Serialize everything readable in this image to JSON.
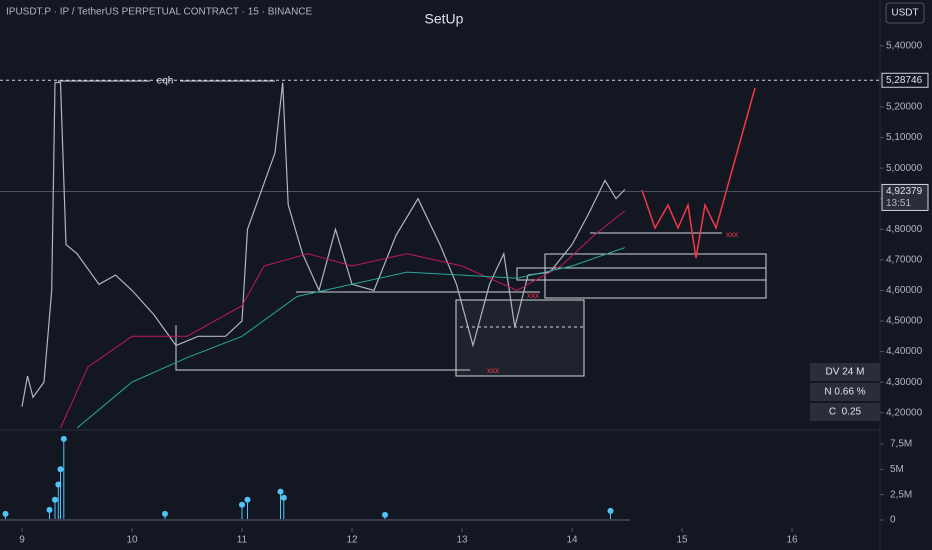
{
  "chart_data": {
    "type": "line",
    "header": "IPUSDT.P · IP / TetherUS PERPETUAL CONTRACT · 15 · BINANCE",
    "title": "SetUp",
    "currency": "USDT",
    "xlim": [
      8.8,
      16.8
    ],
    "xticks": [
      9,
      10,
      11,
      12,
      13,
      14,
      15,
      16
    ],
    "ylim": [
      4.15,
      5.55
    ],
    "yticks": [
      {
        "value": 4.2,
        "label": "4,20000"
      },
      {
        "value": 4.3,
        "label": "4,30000"
      },
      {
        "value": 4.4,
        "label": "4,40000"
      },
      {
        "value": 4.5,
        "label": "4,50000"
      },
      {
        "value": 4.6,
        "label": "4,60000"
      },
      {
        "value": 4.7,
        "label": "4,70000"
      },
      {
        "value": 4.8,
        "label": "4,80000"
      },
      {
        "value": 4.9,
        "label": "4,90000"
      },
      {
        "value": 5.0,
        "label": "5,00000"
      },
      {
        "value": 5.1,
        "label": "5,10000"
      },
      {
        "value": 5.2,
        "label": "5,20000"
      },
      {
        "value": 5.4,
        "label": "5,40000"
      }
    ],
    "series": [
      {
        "name": "Price",
        "color": "#b2b5be",
        "x": [
          9.0,
          9.05,
          9.1,
          9.2,
          9.27,
          9.3,
          9.35,
          9.4,
          9.5,
          9.7,
          9.85,
          10.0,
          10.2,
          10.4,
          10.6,
          10.85,
          11.0,
          11.05,
          11.2,
          11.3,
          11.37,
          11.42,
          11.55,
          11.7,
          11.85,
          12.0,
          12.2,
          12.4,
          12.6,
          12.8,
          12.95,
          13.1,
          13.25,
          13.38,
          13.48,
          13.6,
          13.8,
          14.0,
          14.15,
          14.3,
          14.4,
          14.48
        ],
        "values": [
          4.22,
          4.32,
          4.25,
          4.3,
          4.6,
          5.28,
          5.28,
          4.75,
          4.72,
          4.62,
          4.65,
          4.6,
          4.52,
          4.42,
          4.45,
          4.45,
          4.5,
          4.8,
          4.95,
          5.05,
          5.28,
          4.88,
          4.72,
          4.6,
          4.8,
          4.62,
          4.6,
          4.78,
          4.9,
          4.75,
          4.62,
          4.42,
          4.62,
          4.72,
          4.48,
          4.65,
          4.66,
          4.75,
          4.85,
          4.96,
          4.9,
          4.93
        ]
      },
      {
        "name": "MA fast",
        "color": "#c2185b",
        "x": [
          9.35,
          9.6,
          10.0,
          10.5,
          11.0,
          11.2,
          11.6,
          12.0,
          12.5,
          13.0,
          13.5,
          13.9,
          14.2,
          14.48
        ],
        "values": [
          4.15,
          4.35,
          4.45,
          4.45,
          4.55,
          4.68,
          4.72,
          4.68,
          4.72,
          4.68,
          4.6,
          4.68,
          4.78,
          4.86
        ]
      },
      {
        "name": "MA slow",
        "color": "#26a69a",
        "x": [
          9.5,
          10.0,
          10.5,
          11.0,
          11.5,
          12.0,
          12.5,
          13.0,
          13.5,
          14.0,
          14.48
        ],
        "values": [
          4.15,
          4.3,
          4.38,
          4.45,
          4.58,
          4.62,
          4.66,
          4.65,
          4.64,
          4.68,
          4.74
        ]
      }
    ],
    "price_levels": [
      {
        "value": 5.28746,
        "label": "5,28746"
      },
      {
        "value": 4.92379,
        "label": "4,92379"
      }
    ],
    "countdown": "13:51",
    "annotations": [
      "eqh",
      "xxx",
      "xxx",
      "xxx"
    ],
    "info": [
      "DV 24 M",
      "N 0.66 %",
      "C  0.25"
    ],
    "volume": {
      "color": "#4fc3f7",
      "ylim": [
        0,
        8680000
      ],
      "yticks": [
        0,
        {
          "value": 2500000,
          "label": "2,5M"
        },
        {
          "value": 5000000,
          "label": "5M"
        },
        {
          "value": 7500000,
          "label": "7,5M"
        }
      ],
      "x": [
        8.85,
        9.25,
        9.3,
        9.33,
        9.35,
        9.38,
        10.3,
        11.0,
        11.05,
        11.35,
        11.38,
        12.3,
        14.35
      ],
      "values": [
        600000,
        1000000,
        2000000,
        3500000,
        5000000,
        8000000,
        600000,
        1500000,
        2000000,
        2800000,
        2200000,
        500000,
        900000
      ]
    }
  }
}
